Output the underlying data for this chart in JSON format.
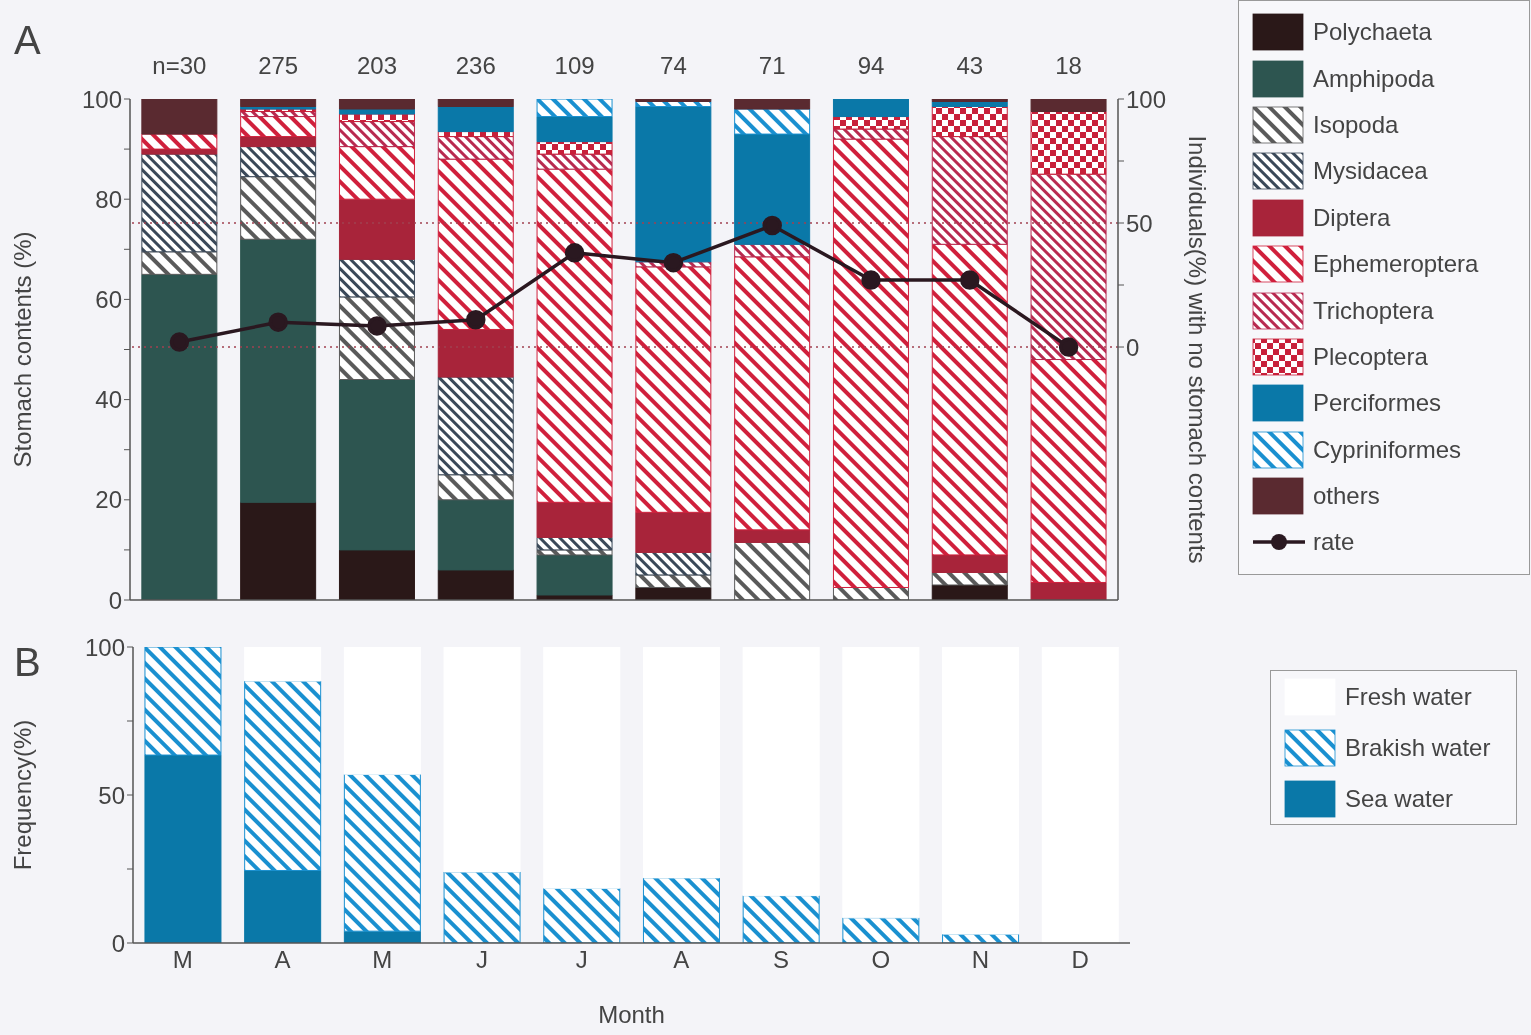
{
  "chart_data": [
    {
      "type": "bar",
      "title": "A",
      "stacked": true,
      "ylabel": "Stomach contents (%)",
      "y2label": "Individuals(%) with no stomach contents",
      "categories": [
        null,
        null,
        null,
        null,
        null,
        null,
        null,
        null,
        null,
        null
      ],
      "tick_labels": "y",
      "ylim": [
        0,
        100
      ],
      "yticks": [
        0,
        {
          "value": 10,
          "label": null
        },
        20,
        {
          "value": 30,
          "label": null
        },
        40,
        {
          "value": 50,
          "label": null
        },
        60,
        {
          "value": 70,
          "label": null
        },
        80,
        {
          "value": 90,
          "label": null
        },
        100
      ],
      "y2lim": [
        -102,
        100
      ],
      "y2ticks": [
        0,
        {
          "value": 25,
          "label": null
        },
        50,
        {
          "value": 75,
          "label": null
        },
        100
      ],
      "ref_lines": [
        {
          "axis": "y2",
          "value": 0,
          "color": "#a04050",
          "line_style": "dotted"
        },
        {
          "axis": "y2",
          "value": 50,
          "color": "#a04050",
          "line_style": "dotted"
        }
      ],
      "annotations": [
        "n=30",
        "275",
        "203",
        "236",
        "109",
        "74",
        "71",
        "94",
        "43",
        "18"
      ],
      "legend": "right",
      "series": [
        {
          "name": "Polychaeta",
          "color": "#2a1818",
          "values": [
            0,
            19.5,
            10,
            6,
            1,
            2.5,
            0,
            0,
            3,
            0
          ]
        },
        {
          "name": "Amphipoda",
          "color": "#2d5550",
          "values": [
            65,
            52.5,
            34,
            14,
            8,
            0,
            0,
            0,
            0,
            0
          ]
        },
        {
          "name": "Isopoda",
          "color": "#5a5a5a",
          "values": [
            4.5,
            12.5,
            16.5,
            5,
            1,
            2.5,
            11.5,
            2.5,
            2.5,
            0
          ]
        },
        {
          "name": "Mysidacea",
          "color": "#3a4858",
          "values": [
            19.5,
            6,
            7.5,
            19.5,
            2.5,
            4.5,
            0,
            0,
            0,
            0
          ]
        },
        {
          "name": "Diptera",
          "color": "#a8243a",
          "values": [
            1,
            2,
            12,
            9.5,
            7,
            8,
            2.5,
            0,
            3.5,
            3.5
          ]
        },
        {
          "name": "Ephemeroptera",
          "color": "#d0203c",
          "values": [
            3,
            4,
            10.5,
            34,
            66.5,
            49,
            54.5,
            89.5,
            62,
            44.5
          ]
        },
        {
          "name": "Trichoptera",
          "color": "#b82a50",
          "values": [
            0,
            1,
            5,
            4.5,
            3,
            1,
            2.5,
            2,
            21.5,
            37
          ]
        },
        {
          "name": "Plecoptera",
          "color": "#c8203a",
          "values": [
            0,
            0.5,
            1.5,
            1,
            2.5,
            0,
            0,
            2.5,
            6,
            12.5
          ]
        },
        {
          "name": "Perciformes",
          "color": "#0a78a8",
          "values": [
            0,
            0.5,
            1,
            5,
            5,
            31,
            22,
            3.5,
            1,
            0
          ]
        },
        {
          "name": "Cypriniformes",
          "color": "#1a90d0",
          "values": [
            0,
            0,
            0,
            0,
            3.5,
            1,
            5,
            0,
            0,
            0
          ]
        },
        {
          "name": "others",
          "color": "#5a2a30",
          "values": [
            7,
            1.5,
            2,
            1.5,
            0,
            0.5,
            2,
            0,
            0.5,
            2.5
          ]
        },
        {
          "name": "rate",
          "type": "line",
          "axis": "y2",
          "marker": "circle",
          "color": "#2a1820",
          "values": [
            2,
            10,
            8.5,
            11,
            38,
            34,
            49,
            27,
            27,
            0
          ]
        }
      ]
    },
    {
      "type": "bar",
      "title": "B",
      "stacked": true,
      "ylabel": "Frequency(%)",
      "xlabel": "Month",
      "categories": [
        "M",
        "A",
        "M",
        "J",
        "J",
        "A",
        "S",
        "O",
        "N",
        "D"
      ],
      "ylim": [
        0,
        100
      ],
      "yticks": [
        0,
        {
          "value": 25,
          "label": null
        },
        50,
        {
          "value": 75,
          "label": null
        },
        100
      ],
      "legend": "right",
      "series": [
        {
          "name": "Sea water",
          "color": "#0a78a8",
          "values": [
            63.5,
            24.5,
            4,
            0,
            0,
            0,
            0,
            0,
            0,
            0
          ]
        },
        {
          "name": "Brakish water",
          "color": "#1a90d0",
          "values": [
            36.5,
            64,
            53,
            24,
            18.5,
            22,
            16,
            8.5,
            3,
            0
          ]
        },
        {
          "name": "Fresh water",
          "color": "#ffffff",
          "values": [
            0,
            11.5,
            43,
            76,
            81.5,
            78,
            84,
            91.5,
            97,
            100
          ]
        }
      ]
    }
  ]
}
